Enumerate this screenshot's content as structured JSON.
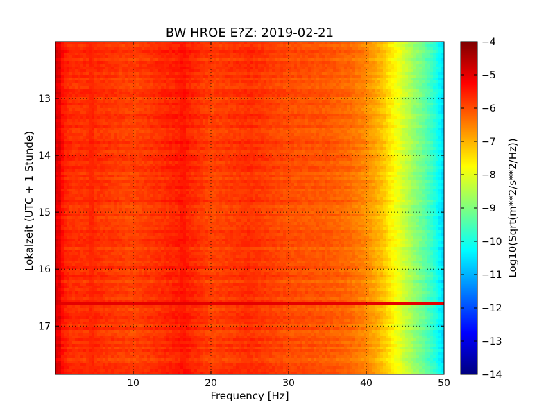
{
  "chart_data": {
    "type": "heatmap",
    "title": "BW HROE E?Z: 2019-02-21",
    "xlabel": "Frequency [Hz]",
    "ylabel": "Lokalzeit (UTC + 1 Stunde)",
    "xlim": [
      0,
      50
    ],
    "ylim": [
      17.85,
      12.0
    ],
    "y_axis_inverted": true,
    "grid": true,
    "grid_style": "dotted",
    "x_ticks": [
      10,
      20,
      30,
      40,
      50
    ],
    "x_tick_labels": [
      "10",
      "20",
      "30",
      "40",
      "50"
    ],
    "y_ticks": [
      13,
      14,
      15,
      16,
      17
    ],
    "y_tick_labels": [
      "13",
      "14",
      "15",
      "16",
      "17"
    ],
    "colormap": "jet",
    "colorbar": {
      "label": "Log10(Sqrt(m**2/s**2/Hz))",
      "range": [
        -14,
        -4
      ],
      "ticks": [
        -4,
        -5,
        -6,
        -7,
        -8,
        -9,
        -10,
        -11,
        -12,
        -13,
        -14
      ],
      "tick_labels": [
        "−4",
        "−5",
        "−6",
        "−7",
        "−8",
        "−9",
        "−10",
        "−11",
        "−12",
        "−13",
        "−14"
      ],
      "colors": [
        "#00007f",
        "#0000ff",
        "#007fff",
        "#00ffff",
        "#7fff7f",
        "#ffff00",
        "#ff7f00",
        "#ff0000",
        "#7f0000"
      ]
    },
    "frequency_profile": {
      "frequency_hz": [
        0.5,
        1,
        2,
        5,
        10,
        16.5,
        20,
        25,
        30,
        35,
        38,
        40,
        42,
        43,
        44,
        45,
        46,
        47,
        48,
        49,
        50
      ],
      "log10_amplitude": [
        -5.0,
        -5.5,
        -5.7,
        -5.7,
        -5.9,
        -5.5,
        -5.9,
        -5.7,
        -6.0,
        -6.1,
        -6.3,
        -6.6,
        -7.1,
        -7.5,
        -7.9,
        -8.3,
        -8.7,
        -9.1,
        -9.5,
        -10.0,
        -10.6
      ]
    },
    "features": [
      {
        "kind": "vertical_line",
        "frequency_hz": 16.5,
        "log10_amplitude": -5.5
      },
      {
        "kind": "vertical_line",
        "frequency_hz": 4.8,
        "log10_amplitude": -5.6
      },
      {
        "kind": "horizontal_band",
        "time_h": 16.62,
        "log10_amplitude": -5.0,
        "up_to_hz": 50
      }
    ]
  }
}
